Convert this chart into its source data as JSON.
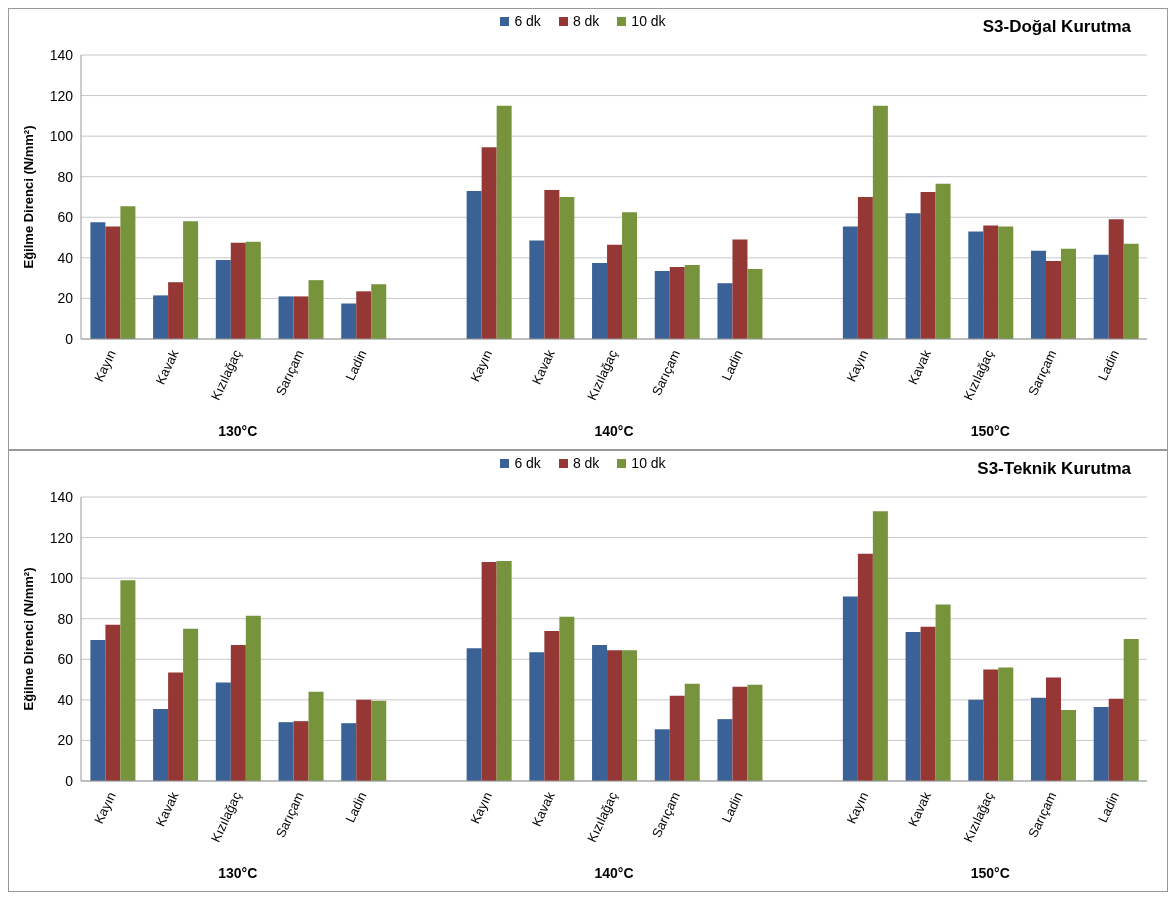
{
  "chart_data": [
    {
      "type": "bar",
      "title": "S3-Doğal Kurutma",
      "ylabel": "Eğilme Direnci (N/mm²)",
      "categories": [
        "Kayın",
        "Kavak",
        "Kızılağaç",
        "Sarıçam",
        "Ladin",
        null,
        "Kayın",
        "Kavak",
        "Kızılağaç",
        "Sarıçam",
        "Ladin",
        null,
        "Kayın",
        "Kavak",
        "Kızılağaç",
        "Sarıçam",
        "Ladin"
      ],
      "series": [
        {
          "name": "6 dk",
          "color": "#3a6296",
          "values": [
            57.5,
            21.5,
            39,
            21,
            17.5,
            null,
            73,
            48.5,
            37.5,
            33.5,
            27.5,
            null,
            55.5,
            62,
            53,
            43.5,
            41.5
          ]
        },
        {
          "name": "8 dk",
          "color": "#953735",
          "values": [
            55.5,
            28,
            47.5,
            21,
            23.5,
            null,
            94.5,
            73.5,
            46.5,
            35.5,
            49,
            null,
            70,
            72.5,
            56,
            38.5,
            59
          ]
        },
        {
          "name": "10 dk",
          "color": "#77933c",
          "values": [
            65.5,
            58,
            48,
            29,
            27,
            null,
            115,
            70,
            62.5,
            36.5,
            34.5,
            null,
            115,
            76.5,
            55.5,
            44.5,
            47
          ]
        }
      ],
      "ylim": [
        0,
        140
      ],
      "yticks": [
        0,
        20,
        40,
        60,
        80,
        100,
        120,
        140
      ],
      "grid": "y",
      "legend": "top",
      "annotations": [
        "130°C",
        "140°C",
        "150°C"
      ]
    },
    {
      "type": "bar",
      "title": "S3-Teknik Kurutma",
      "ylabel": "Eğilme Direnci (N/mm²)",
      "categories": [
        "Kayın",
        "Kavak",
        "Kızılağaç",
        "Sarıçam",
        "Ladin",
        null,
        "Kayın",
        "Kavak",
        "Kızılağaç",
        "Sarıçam",
        "Ladin",
        null,
        "Kayın",
        "Kavak",
        "Kızılağaç",
        "Sarıçam",
        "Ladin"
      ],
      "series": [
        {
          "name": "6 dk",
          "color": "#3a6296",
          "values": [
            69.5,
            35.5,
            48.5,
            29,
            28.5,
            null,
            65.5,
            63.5,
            67,
            25.5,
            30.5,
            null,
            91,
            73.5,
            40,
            41,
            36.5
          ]
        },
        {
          "name": "8 dk",
          "color": "#953735",
          "values": [
            77,
            53.5,
            67,
            29.5,
            40,
            null,
            108,
            74,
            64.5,
            42,
            46.5,
            null,
            112,
            76,
            55,
            51,
            40.5
          ]
        },
        {
          "name": "10 dk",
          "color": "#77933c",
          "values": [
            99,
            75,
            81.5,
            44,
            39.5,
            null,
            108.5,
            81,
            64.5,
            48,
            47.5,
            null,
            133,
            87,
            56,
            35,
            70
          ]
        }
      ],
      "ylim": [
        0,
        140
      ],
      "yticks": [
        0,
        20,
        40,
        60,
        80,
        100,
        120,
        140
      ],
      "grid": "y",
      "legend": "top",
      "annotations": [
        "130°C",
        "140°C",
        "150°C"
      ]
    }
  ]
}
